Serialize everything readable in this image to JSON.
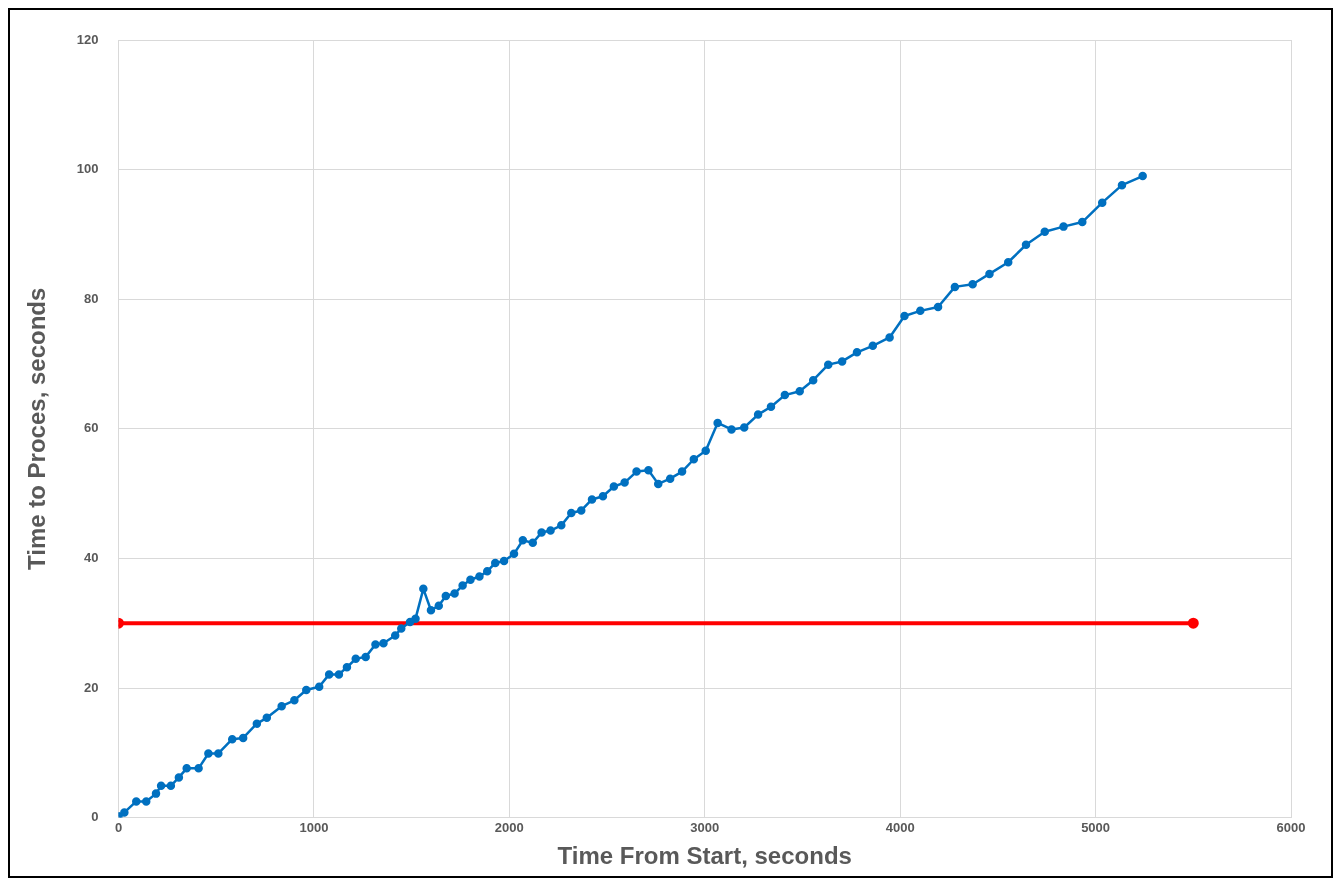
{
  "chart_data": {
    "type": "line",
    "xlabel": "Time From Start, seconds",
    "ylabel": "Time to Proces, seconds",
    "xlim": [
      0,
      6000
    ],
    "xticks": [
      0,
      1000,
      2000,
      3000,
      4000,
      5000,
      6000
    ],
    "ylim": [
      0,
      120
    ],
    "yticks": [
      0,
      20,
      40,
      60,
      80,
      100,
      120
    ],
    "grid": true,
    "marker": "circle",
    "line_style": "solid",
    "series": [
      {
        "color": "#0070c0",
        "x": [
          0,
          30,
          91,
          142,
          192,
          218,
          268,
          309,
          349,
          410,
          460,
          511,
          582,
          638,
          708,
          759,
          835,
          900,
          961,
          1027,
          1078,
          1128,
          1169,
          1214,
          1265,
          1315,
          1356,
          1416,
          1447,
          1492,
          1520,
          1560,
          1599,
          1639,
          1675,
          1720,
          1761,
          1801,
          1847,
          1887,
          1928,
          1973,
          2024,
          2069,
          2120,
          2165,
          2211,
          2266,
          2317,
          2368,
          2423,
          2479,
          2535,
          2590,
          2651,
          2712,
          2762,
          2823,
          2884,
          2944,
          3005,
          3066,
          3137,
          3202,
          3273,
          3339,
          3410,
          3486,
          3555,
          3632,
          3703,
          3779,
          3860,
          3946,
          4022,
          4103,
          4194,
          4280,
          4371,
          4457,
          4553,
          4644,
          4740,
          4836,
          4932,
          5034,
          5135,
          5241
        ],
        "values": [
          0.2,
          0.8,
          2.5,
          2.5,
          3.7,
          4.9,
          4.9,
          6.2,
          7.6,
          7.6,
          9.9,
          9.9,
          12.1,
          12.3,
          14.5,
          15.4,
          17.2,
          18.1,
          19.7,
          20.2,
          22.1,
          22.1,
          23.2,
          24.5,
          24.8,
          26.7,
          26.9,
          28.1,
          29.2,
          30.2,
          30.7,
          35.3,
          32.0,
          32.7,
          34.2,
          34.6,
          35.8,
          36.7,
          37.2,
          38.0,
          39.3,
          39.6,
          40.7,
          42.8,
          42.4,
          44.0,
          44.3,
          45.1,
          47.0,
          47.4,
          49.1,
          49.6,
          51.1,
          51.7,
          53.4,
          53.6,
          51.5,
          52.3,
          53.4,
          55.3,
          56.6,
          60.9,
          59.9,
          60.2,
          62.2,
          63.4,
          65.2,
          65.8,
          67.5,
          69.9,
          70.4,
          71.8,
          72.8,
          74.1,
          77.4,
          78.2,
          78.8,
          81.9,
          82.3,
          83.9,
          85.7,
          88.4,
          90.4,
          91.2,
          91.9,
          94.9,
          97.6,
          99.0
        ]
      },
      {
        "color": "#ff0000",
        "x": [
          0,
          5500
        ],
        "values": [
          30,
          30
        ]
      }
    ]
  }
}
